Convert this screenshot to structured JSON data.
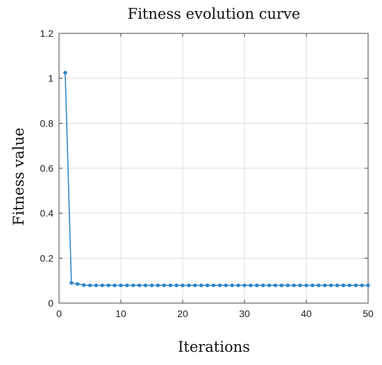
{
  "chart_data": {
    "type": "line",
    "title": "Fitness evolution curve",
    "xlabel": "Iterations",
    "ylabel": "Fitness value",
    "xlim": [
      0,
      50
    ],
    "ylim": [
      0,
      1.2
    ],
    "xticks": [
      0,
      10,
      20,
      30,
      40,
      50
    ],
    "xtick_labels": [
      "0",
      "10",
      "20",
      "30",
      "40",
      "50"
    ],
    "yticks": [
      0,
      0.2,
      0.4,
      0.6,
      0.8,
      1.0,
      1.2
    ],
    "ytick_labels": [
      "0",
      "0.2",
      "0.4",
      "0.6",
      "0.8",
      "1",
      "1.2"
    ],
    "grid": true,
    "legend": "none",
    "series": [
      {
        "color": "#2f86c8",
        "marker": "circle",
        "x": [
          1,
          2,
          3,
          4,
          5,
          6,
          7,
          8,
          9,
          10,
          11,
          12,
          13,
          14,
          15,
          16,
          17,
          18,
          19,
          20,
          21,
          22,
          23,
          24,
          25,
          26,
          27,
          28,
          29,
          30,
          31,
          32,
          33,
          34,
          35,
          36,
          37,
          38,
          39,
          40,
          41,
          42,
          43,
          44,
          45,
          46,
          47,
          48,
          49,
          50
        ],
        "y": [
          1.025,
          0.09,
          0.085,
          0.08,
          0.079,
          0.079,
          0.079,
          0.079,
          0.079,
          0.079,
          0.079,
          0.079,
          0.079,
          0.079,
          0.079,
          0.079,
          0.079,
          0.079,
          0.079,
          0.079,
          0.079,
          0.079,
          0.079,
          0.079,
          0.079,
          0.079,
          0.079,
          0.079,
          0.079,
          0.079,
          0.079,
          0.079,
          0.079,
          0.079,
          0.079,
          0.079,
          0.079,
          0.079,
          0.079,
          0.079,
          0.079,
          0.079,
          0.079,
          0.079,
          0.079,
          0.079,
          0.079,
          0.079,
          0.079,
          0.079
        ]
      }
    ]
  }
}
